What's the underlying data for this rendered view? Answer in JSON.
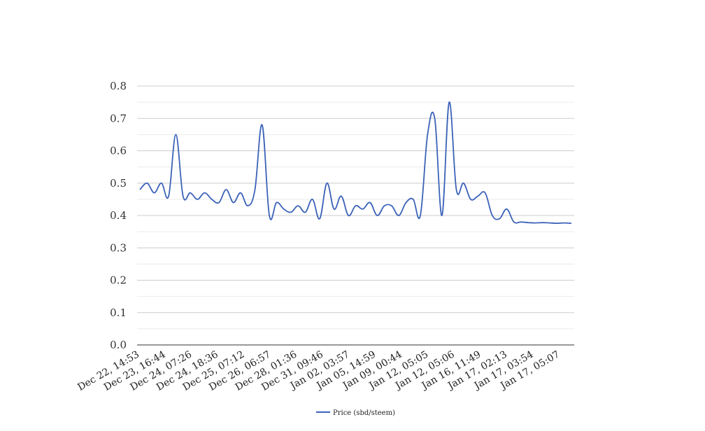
{
  "chart_data": {
    "type": "line",
    "title": "",
    "xlabel": "",
    "ylabel": "",
    "ylim": [
      0,
      0.8
    ],
    "y_ticks": [
      "0.0",
      "0.1",
      "0.2",
      "0.3",
      "0.4",
      "0.5",
      "0.6",
      "0.7",
      "0.8"
    ],
    "x_tick_labels": [
      "Dec 22, 14:53",
      "Dec 23, 16:44",
      "Dec 24, 07:26",
      "Dec 24, 18:36",
      "Dec 25, 07:12",
      "Dec 26, 06:57",
      "Dec 28, 01:36",
      "Dec 31, 09:46",
      "Jan 02, 03:57",
      "Jan 05, 14:59",
      "Jan 09, 00:44",
      "Jan 12, 05:05",
      "Jan 12, 05:06",
      "Jan 16, 11:49",
      "Jan 17, 02:13",
      "Jan 17, 03:54",
      "Jan 17, 05:07"
    ],
    "grid": true,
    "legend_position": "bottom",
    "series": [
      {
        "name": "Price (sbd/steem)",
        "color": "#3b62b8",
        "values": [
          0.48,
          0.5,
          0.47,
          0.5,
          0.46,
          0.65,
          0.46,
          0.47,
          0.45,
          0.47,
          0.45,
          0.44,
          0.48,
          0.44,
          0.47,
          0.43,
          0.48,
          0.68,
          0.4,
          0.44,
          0.42,
          0.41,
          0.43,
          0.41,
          0.45,
          0.39,
          0.5,
          0.42,
          0.46,
          0.4,
          0.43,
          0.42,
          0.44,
          0.4,
          0.43,
          0.43,
          0.4,
          0.44,
          0.45,
          0.4,
          0.65,
          0.7,
          0.4,
          0.75,
          0.48,
          0.5,
          0.45,
          0.46,
          0.47,
          0.4,
          0.39,
          0.42,
          0.38,
          0.38,
          0.378,
          0.377,
          0.378,
          0.377,
          0.376,
          0.377,
          0.376
        ]
      }
    ]
  }
}
